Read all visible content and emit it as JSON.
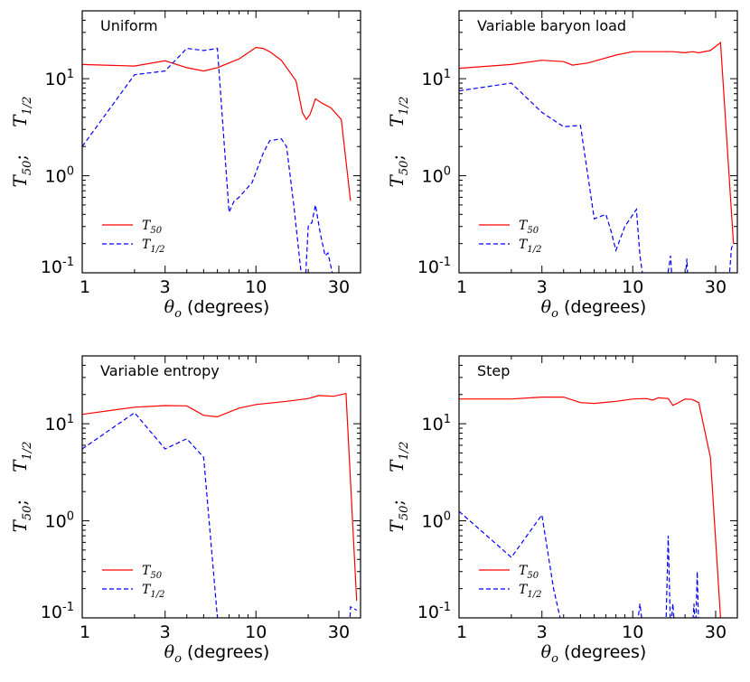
{
  "colors": {
    "t50": "#ff0000",
    "thalf": "#0000ff"
  },
  "shared_axes": {
    "xlabel": {
      "symbol": "θ",
      "subscript": "o",
      "suffix": " (degrees)"
    },
    "ylabel": {
      "main": "T",
      "main_sub": "50",
      "separator": ";",
      "second": "T",
      "second_sub": "1/2"
    },
    "xticks": [
      {
        "value": 1,
        "label": "1"
      },
      {
        "value": 3,
        "label": "3"
      },
      {
        "value": 10,
        "label": "10"
      },
      {
        "value": 30,
        "label": "30"
      }
    ],
    "yticks": [
      {
        "value": 0.1,
        "mantissa": "10",
        "exp": "-1"
      },
      {
        "value": 1,
        "mantissa": "10",
        "exp": "0"
      },
      {
        "value": 10,
        "mantissa": "10",
        "exp": "1"
      }
    ],
    "xlim": [
      1,
      40
    ],
    "ylim": [
      0.1,
      50
    ]
  },
  "legend": {
    "t50": {
      "main": "T",
      "sub": "50"
    },
    "thalf": {
      "main": "T",
      "sub": "1/2"
    }
  },
  "chart_data": [
    {
      "type": "line",
      "title": "Uniform",
      "xscale": "log",
      "yscale": "log",
      "series": [
        {
          "name": "T50",
          "style": "solid",
          "color": "red",
          "points": [
            [
              1,
              14
            ],
            [
              2,
              13.5
            ],
            [
              3,
              15.3
            ],
            [
              4,
              13
            ],
            [
              5,
              12
            ],
            [
              6,
              13
            ],
            [
              8,
              16
            ],
            [
              10,
              21
            ],
            [
              11,
              20.5
            ],
            [
              12,
              19
            ],
            [
              14,
              15.5
            ],
            [
              17,
              9.5
            ],
            [
              18.5,
              4.5
            ],
            [
              19.5,
              3.8
            ],
            [
              20.5,
              4.3
            ],
            [
              22,
              6.2
            ],
            [
              24,
              5.6
            ],
            [
              27,
              5
            ],
            [
              31,
              3.8
            ],
            [
              35,
              0.55
            ]
          ]
        },
        {
          "name": "T1/2",
          "style": "dashed",
          "color": "blue",
          "points": [
            [
              1,
              2
            ],
            [
              2,
              11
            ],
            [
              3,
              12
            ],
            [
              3.5,
              16
            ],
            [
              4,
              20.5
            ],
            [
              5,
              19.5
            ],
            [
              6,
              20.5
            ],
            [
              7,
              0.42
            ],
            [
              7.5,
              0.55
            ],
            [
              8,
              0.6
            ],
            [
              9.5,
              0.85
            ],
            [
              11,
              1.7
            ],
            [
              12,
              2.3
            ],
            [
              14,
              2.4
            ],
            [
              15,
              2
            ],
            [
              16.5,
              0.5
            ],
            [
              18,
              0.12
            ],
            [
              19,
              0.05
            ],
            [
              20,
              0.3
            ],
            [
              21,
              0.33
            ],
            [
              22,
              0.5
            ],
            [
              23.5,
              0.25
            ],
            [
              25,
              0.15
            ],
            [
              26,
              0.16
            ],
            [
              27.5,
              0.1
            ],
            [
              28.5,
              0.06
            ]
          ]
        }
      ]
    },
    {
      "type": "line",
      "title": "Variable baryon load",
      "xscale": "log",
      "yscale": "log",
      "series": [
        {
          "name": "T50",
          "style": "solid",
          "color": "red",
          "points": [
            [
              1,
              12.8
            ],
            [
              2,
              14
            ],
            [
              3,
              15.5
            ],
            [
              4,
              15
            ],
            [
              4.5,
              13.8
            ],
            [
              5.5,
              14.5
            ],
            [
              8,
              17.5
            ],
            [
              10,
              19
            ],
            [
              13,
              19
            ],
            [
              17,
              19
            ],
            [
              20,
              18.5
            ],
            [
              22,
              19
            ],
            [
              24,
              18.5
            ],
            [
              28,
              19.5
            ],
            [
              32,
              23.5
            ],
            [
              38,
              0.2
            ]
          ]
        },
        {
          "name": "T1/2",
          "style": "dashed",
          "color": "blue",
          "points": [
            [
              1,
              7.5
            ],
            [
              2,
              9
            ],
            [
              3,
              4.5
            ],
            [
              4,
              3.2
            ],
            [
              5,
              3.3
            ],
            [
              6,
              0.36
            ],
            [
              6.5,
              0.38
            ],
            [
              7,
              0.4
            ],
            [
              7.5,
              0.27
            ],
            [
              8,
              0.17
            ],
            [
              9,
              0.3
            ],
            [
              10.5,
              0.45
            ],
            [
              11,
              0.15
            ],
            [
              12,
              0.05
            ],
            [
              14,
              0.08
            ],
            [
              15.5,
              0.07
            ],
            [
              16.5,
              0.15
            ],
            [
              17,
              0.06
            ],
            [
              19.5,
              0.05
            ],
            [
              20.5,
              0.14
            ],
            [
              21,
              0.05
            ],
            [
              35,
              0.05
            ],
            [
              37,
              0.18
            ],
            [
              38,
              0.2
            ]
          ]
        }
      ]
    },
    {
      "type": "line",
      "title": "Variable entropy",
      "xscale": "log",
      "yscale": "log",
      "series": [
        {
          "name": "T50",
          "style": "solid",
          "color": "red",
          "points": [
            [
              1,
              12.5
            ],
            [
              2,
              14.8
            ],
            [
              3,
              15.4
            ],
            [
              4,
              15.3
            ],
            [
              5,
              12.2
            ],
            [
              6,
              11.8
            ],
            [
              8,
              14.5
            ],
            [
              10,
              15.8
            ],
            [
              15,
              17
            ],
            [
              20,
              18.2
            ],
            [
              23,
              19.5
            ],
            [
              28,
              19.2
            ],
            [
              33,
              20.5
            ],
            [
              38,
              0.15
            ]
          ]
        },
        {
          "name": "T1/2",
          "style": "dashed",
          "color": "blue",
          "points": [
            [
              1,
              5.5
            ],
            [
              2,
              13
            ],
            [
              3,
              5.5
            ],
            [
              4,
              7
            ],
            [
              5,
              4.5
            ],
            [
              6,
              0.1
            ],
            [
              7,
              0.04
            ],
            [
              34,
              0.04
            ],
            [
              35,
              0.13
            ],
            [
              38,
              0.12
            ]
          ]
        }
      ]
    },
    {
      "type": "line",
      "title": "Step",
      "xscale": "log",
      "yscale": "log",
      "series": [
        {
          "name": "T50",
          "style": "solid",
          "color": "red",
          "points": [
            [
              1,
              18
            ],
            [
              2,
              18
            ],
            [
              3,
              18.8
            ],
            [
              4,
              18.8
            ],
            [
              5,
              16.5
            ],
            [
              6,
              16.2
            ],
            [
              8,
              17
            ],
            [
              10,
              18
            ],
            [
              12,
              18.2
            ],
            [
              13,
              17.5
            ],
            [
              14,
              18.5
            ],
            [
              16,
              18.2
            ],
            [
              17,
              15.5
            ],
            [
              18,
              16.2
            ],
            [
              20,
              18
            ],
            [
              22,
              17.8
            ],
            [
              24,
              16.5
            ],
            [
              28,
              4.5
            ],
            [
              32,
              0.1
            ]
          ]
        },
        {
          "name": "T1/2",
          "style": "dashed",
          "color": "blue",
          "points": [
            [
              1,
              1.25
            ],
            [
              2,
              0.42
            ],
            [
              3,
              1.15
            ],
            [
              3.5,
              0.2
            ],
            [
              4,
              0.07
            ],
            [
              10.5,
              0.07
            ],
            [
              11,
              0.14
            ],
            [
              11.5,
              0.07
            ],
            [
              15.5,
              0.07
            ],
            [
              16,
              0.7
            ],
            [
              16.5,
              0.07
            ],
            [
              17,
              0.14
            ],
            [
              17.5,
              0.07
            ],
            [
              22,
              0.07
            ],
            [
              22.5,
              0.14
            ],
            [
              23,
              0.07
            ],
            [
              23.5,
              0.3
            ],
            [
              24,
              0.07
            ]
          ]
        }
      ]
    }
  ]
}
